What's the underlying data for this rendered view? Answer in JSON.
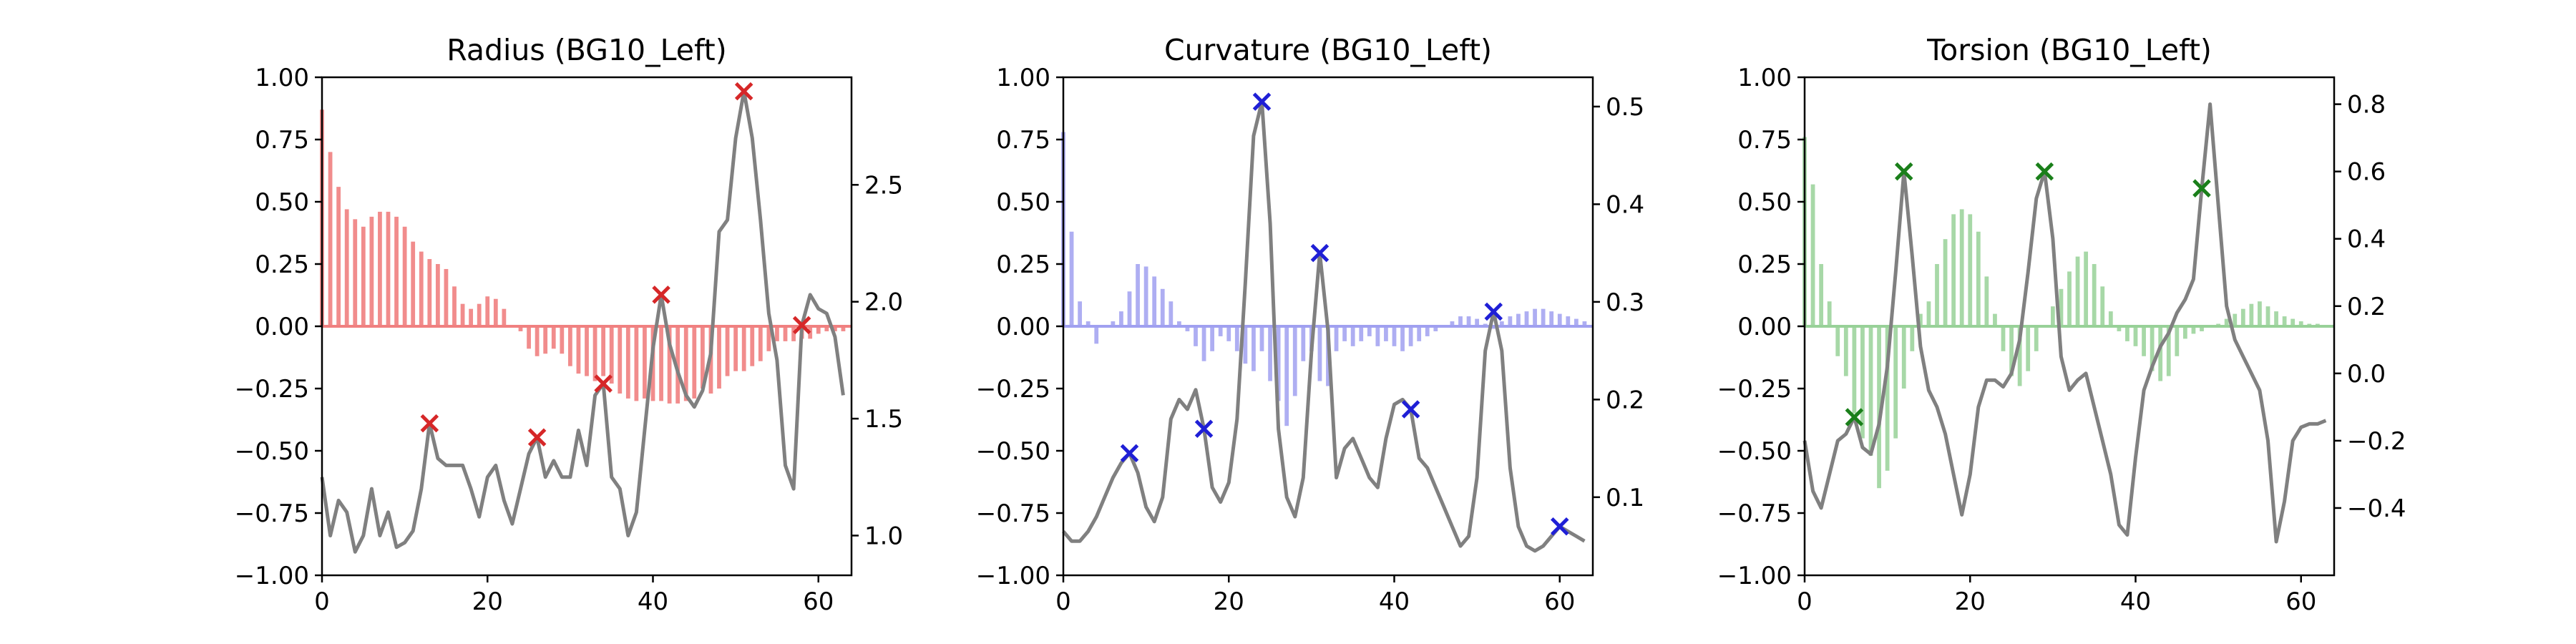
{
  "chart_data": [
    {
      "type": "bar",
      "title": "Radius (BG10_Left)",
      "xlim": [
        0,
        64
      ],
      "ylim": [
        -1.0,
        1.0
      ],
      "y2lim": [
        0.83,
        2.96
      ],
      "xticks": [
        "0",
        "20",
        "40",
        "60"
      ],
      "yticks": [
        "−1.00",
        "−0.75",
        "−0.50",
        "−0.25",
        "0.00",
        "0.25",
        "0.50",
        "0.75",
        "1.00"
      ],
      "y2ticks": [
        "1.0",
        "1.5",
        "2.0",
        "2.5"
      ],
      "y2tick_values": [
        1.0,
        1.5,
        2.0,
        2.5
      ],
      "colors": {
        "bar": "#f08080",
        "bar_opacity": "0.9",
        "line": "#808080",
        "marker": "#d62728"
      },
      "bars": [
        0.87,
        0.7,
        0.56,
        0.47,
        0.43,
        0.4,
        0.44,
        0.46,
        0.46,
        0.44,
        0.4,
        0.34,
        0.3,
        0.27,
        0.25,
        0.23,
        0.16,
        0.09,
        0.07,
        0.09,
        0.12,
        0.11,
        0.07,
        0.0,
        -0.02,
        -0.09,
        -0.12,
        -0.11,
        -0.09,
        -0.11,
        -0.16,
        -0.19,
        -0.2,
        -0.22,
        -0.2,
        -0.23,
        -0.27,
        -0.29,
        -0.3,
        -0.29,
        -0.3,
        -0.3,
        -0.31,
        -0.31,
        -0.3,
        -0.29,
        -0.25,
        -0.27,
        -0.25,
        -0.2,
        -0.18,
        -0.18,
        -0.16,
        -0.14,
        -0.1,
        -0.06,
        -0.06,
        -0.06,
        -0.05,
        -0.05,
        -0.03,
        -0.02,
        -0.02,
        -0.02
      ],
      "line": [
        1.25,
        1.0,
        1.15,
        1.1,
        0.93,
        1.0,
        1.2,
        1.0,
        1.1,
        0.95,
        0.97,
        1.02,
        1.2,
        1.48,
        1.33,
        1.3,
        1.3,
        1.3,
        1.2,
        1.08,
        1.25,
        1.3,
        1.15,
        1.05,
        1.2,
        1.35,
        1.42,
        1.25,
        1.32,
        1.25,
        1.25,
        1.45,
        1.3,
        1.6,
        1.65,
        1.25,
        1.2,
        1.0,
        1.1,
        1.45,
        1.8,
        2.03,
        1.82,
        1.7,
        1.6,
        1.55,
        1.62,
        1.78,
        2.3,
        2.35,
        2.7,
        2.9,
        2.7,
        2.35,
        1.95,
        1.75,
        1.3,
        1.2,
        1.9,
        2.03,
        1.97,
        1.95,
        1.85,
        1.6
      ],
      "markers": [
        13,
        26,
        34,
        41,
        51,
        58
      ]
    },
    {
      "type": "bar",
      "title": "Curvature (BG10_Left)",
      "xlim": [
        0,
        64
      ],
      "ylim": [
        -1.0,
        1.0
      ],
      "y2lim": [
        0.02,
        0.53
      ],
      "xticks": [
        "0",
        "20",
        "40",
        "60"
      ],
      "yticks": [
        "−1.00",
        "−0.75",
        "−0.50",
        "−0.25",
        "0.00",
        "0.25",
        "0.50",
        "0.75",
        "1.00"
      ],
      "y2ticks": [
        "0.1",
        "0.2",
        "0.3",
        "0.4",
        "0.5"
      ],
      "y2tick_values": [
        0.1,
        0.2,
        0.3,
        0.4,
        0.5
      ],
      "colors": {
        "bar": "#a0a0f0",
        "bar_opacity": "0.85",
        "line": "#808080",
        "marker": "#1f1fd6"
      },
      "bars": [
        0.78,
        0.38,
        0.1,
        0.02,
        -0.07,
        0.0,
        0.02,
        0.06,
        0.14,
        0.25,
        0.24,
        0.2,
        0.15,
        0.1,
        0.02,
        -0.02,
        -0.08,
        -0.14,
        -0.1,
        -0.04,
        -0.06,
        -0.1,
        -0.15,
        -0.18,
        -0.1,
        -0.22,
        -0.3,
        -0.4,
        -0.28,
        -0.14,
        -0.1,
        -0.22,
        -0.24,
        -0.1,
        -0.06,
        -0.08,
        -0.06,
        -0.04,
        -0.08,
        -0.06,
        -0.08,
        -0.1,
        -0.08,
        -0.06,
        -0.04,
        -0.02,
        0.0,
        0.02,
        0.04,
        0.04,
        0.03,
        0.01,
        -0.01,
        0.02,
        0.04,
        0.05,
        0.06,
        0.07,
        0.07,
        0.06,
        0.05,
        0.04,
        0.03,
        0.02
      ],
      "line": [
        0.065,
        0.055,
        0.055,
        0.065,
        0.08,
        0.1,
        0.12,
        0.135,
        0.145,
        0.125,
        0.09,
        0.075,
        0.1,
        0.18,
        0.2,
        0.19,
        0.21,
        0.17,
        0.11,
        0.095,
        0.115,
        0.18,
        0.32,
        0.47,
        0.505,
        0.38,
        0.17,
        0.1,
        0.08,
        0.12,
        0.25,
        0.35,
        0.27,
        0.12,
        0.15,
        0.16,
        0.14,
        0.12,
        0.11,
        0.16,
        0.195,
        0.2,
        0.19,
        0.14,
        0.13,
        0.11,
        0.09,
        0.07,
        0.05,
        0.06,
        0.12,
        0.25,
        0.29,
        0.25,
        0.13,
        0.07,
        0.05,
        0.045,
        0.05,
        0.06,
        0.07,
        0.065,
        0.06,
        0.055
      ],
      "markers": [
        8,
        17,
        24,
        31,
        42,
        52,
        60
      ]
    },
    {
      "type": "bar",
      "title": "Torsion (BG10_Left)",
      "xlim": [
        0,
        64
      ],
      "ylim": [
        -1.0,
        1.0
      ],
      "y2lim": [
        -0.6,
        0.88
      ],
      "xticks": [
        "0",
        "20",
        "40",
        "60"
      ],
      "yticks": [
        "−1.00",
        "−0.75",
        "−0.50",
        "−0.25",
        "0.00",
        "0.25",
        "0.50",
        "0.75",
        "1.00"
      ],
      "y2ticks": [
        "−0.4",
        "−0.2",
        "0.0",
        "0.2",
        "0.4",
        "0.6",
        "0.8"
      ],
      "y2tick_values": [
        -0.4,
        -0.2,
        0.0,
        0.2,
        0.4,
        0.6,
        0.8
      ],
      "colors": {
        "bar": "#98d198",
        "bar_opacity": "0.85",
        "line": "#808080",
        "marker": "#1a7f1a"
      },
      "bars": [
        0.76,
        0.57,
        0.25,
        0.1,
        -0.12,
        -0.2,
        -0.35,
        -0.45,
        -0.52,
        -0.65,
        -0.58,
        -0.45,
        -0.25,
        -0.1,
        0.05,
        0.1,
        0.25,
        0.35,
        0.45,
        0.47,
        0.45,
        0.38,
        0.2,
        0.05,
        -0.1,
        -0.2,
        -0.24,
        -0.18,
        -0.1,
        0.0,
        0.08,
        0.15,
        0.22,
        0.28,
        0.3,
        0.25,
        0.16,
        0.06,
        -0.02,
        -0.06,
        -0.08,
        -0.12,
        -0.18,
        -0.22,
        -0.2,
        -0.12,
        -0.05,
        -0.03,
        -0.02,
        0.0,
        0.01,
        0.03,
        0.05,
        0.07,
        0.09,
        0.1,
        0.08,
        0.06,
        0.04,
        0.03,
        0.02,
        0.01,
        0.01,
        0.0
      ],
      "line": [
        -0.2,
        -0.35,
        -0.4,
        -0.3,
        -0.2,
        -0.18,
        -0.13,
        -0.22,
        -0.24,
        -0.15,
        0.02,
        0.3,
        0.6,
        0.35,
        0.08,
        -0.05,
        -0.1,
        -0.18,
        -0.3,
        -0.42,
        -0.3,
        -0.1,
        -0.02,
        -0.02,
        -0.04,
        0.0,
        0.1,
        0.3,
        0.52,
        0.6,
        0.4,
        0.05,
        -0.05,
        -0.02,
        0.0,
        -0.1,
        -0.2,
        -0.3,
        -0.45,
        -0.48,
        -0.25,
        -0.05,
        0.02,
        0.08,
        0.12,
        0.18,
        0.22,
        0.28,
        0.55,
        0.8,
        0.5,
        0.2,
        0.1,
        0.05,
        0.0,
        -0.05,
        -0.2,
        -0.5,
        -0.38,
        -0.2,
        -0.16,
        -0.15,
        -0.15,
        -0.14
      ],
      "markers": [
        6,
        12,
        29,
        48
      ]
    }
  ]
}
